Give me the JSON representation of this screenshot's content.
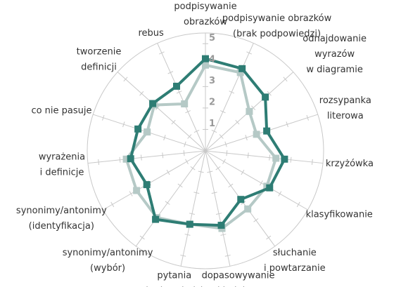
{
  "chart_data": {
    "type": "radar",
    "categories": [
      "podpisywanie\nobrazków",
      "podpisywanie obrazków\n(brak podpowiedzi)",
      "odnajdowanie wyrazów\nw diagramie",
      "rozsypanka\nliterowa",
      "krzyżówka",
      "klasyfikowanie",
      "słuchanie\ni powtarzanie",
      "dopasowywanie\nskładniowe",
      "pytania\ni odpowiedzi",
      "synonimy/antonimy\n(wybór)",
      "synonimy/antonimy\n(identyfikacja)",
      "wyrażenia\ni definicje",
      "co nie pasuje",
      "tworzenie\ndefinicji",
      "rebus"
    ],
    "series": [
      {
        "color": "#b5c9c6",
        "values": [
          4.0,
          4.0,
          2.75,
          2.5,
          3.3,
          3.3,
          3.35,
          3.7,
          3.5,
          3.85,
          3.7,
          3.7,
          2.85,
          3.2,
          2.4
        ]
      },
      {
        "color": "#2e7d74",
        "values": [
          4.3,
          4.2,
          3.75,
          3.0,
          3.7,
          3.45,
          2.8,
          3.55,
          3.5,
          3.95,
          3.15,
          3.5,
          3.3,
          3.3,
          3.3
        ]
      }
    ],
    "ylim": [
      0,
      5.5
    ],
    "yticks": [
      1,
      2,
      3,
      4,
      5
    ]
  }
}
